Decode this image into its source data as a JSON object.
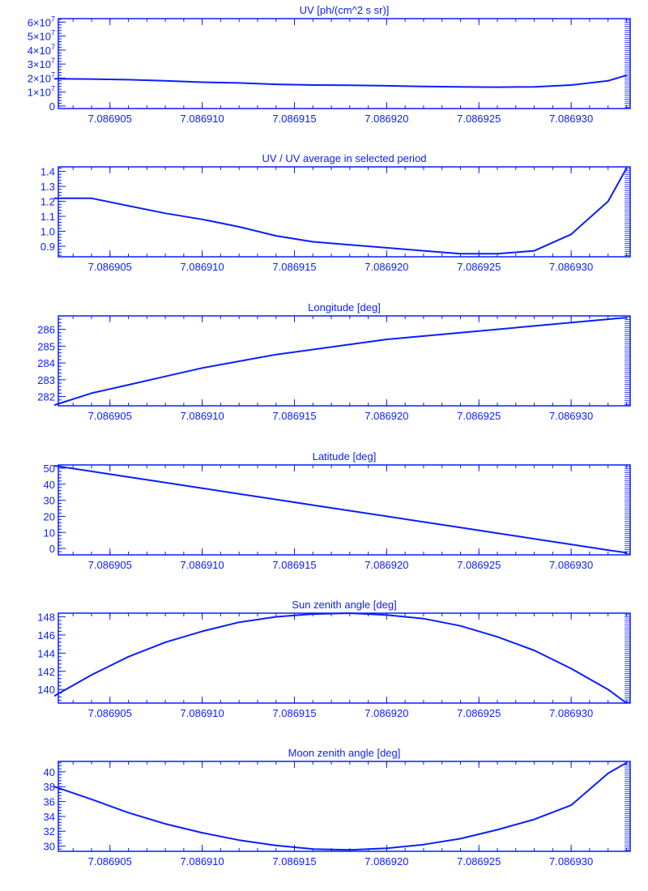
{
  "colors": {
    "ink": "#0a1eff",
    "background": "#ffffff"
  },
  "chart_data": [
    {
      "type": "line",
      "title": "UV [ph/(cm^2 s sr)]",
      "x": [
        7.086902,
        7.086904,
        7.086906,
        7.086908,
        7.08691,
        7.086912,
        7.086914,
        7.086916,
        7.086918,
        7.08692,
        7.086922,
        7.086924,
        7.086926,
        7.086928,
        7.08693,
        7.086932,
        7.086933
      ],
      "y": [
        19500000.0,
        19300000.0,
        18800000.0,
        18000000.0,
        17000000.0,
        16500000.0,
        15500000.0,
        15000000.0,
        14800000.0,
        14500000.0,
        14000000.0,
        13700000.0,
        13500000.0,
        13700000.0,
        15000000.0,
        18000000.0,
        22000000.0
      ],
      "xlim": [
        7.0869022,
        7.0869332
      ],
      "ylim": [
        -1800000.0,
        62500000.0
      ],
      "xticks": [
        7.086905,
        7.08691,
        7.086915,
        7.08692,
        7.086925,
        7.08693
      ],
      "xtick_labels": [
        "7.086905",
        "7.086910",
        "7.086915",
        "7.086920",
        "7.086925",
        "7.086930"
      ],
      "yticks": [
        0,
        10000000.0,
        20000000.0,
        30000000.0,
        40000000.0,
        50000000.0,
        60000000.0
      ],
      "ytick_labels": [
        "0",
        "1x10^7",
        "2x10^7",
        "3x10^7",
        "4x10^7",
        "5x10^7",
        "6x10^7"
      ]
    },
    {
      "type": "line",
      "title": "UV / UV average in selected period",
      "x": [
        7.086902,
        7.086904,
        7.086906,
        7.086908,
        7.08691,
        7.086912,
        7.086914,
        7.086916,
        7.086918,
        7.08692,
        7.086922,
        7.086924,
        7.086926,
        7.086928,
        7.08693,
        7.086932,
        7.086933
      ],
      "y": [
        1.22,
        1.22,
        1.17,
        1.12,
        1.08,
        1.03,
        0.97,
        0.93,
        0.91,
        0.89,
        0.87,
        0.85,
        0.85,
        0.87,
        0.98,
        1.2,
        1.42
      ],
      "xlim": [
        7.0869022,
        7.0869332
      ],
      "ylim": [
        0.83,
        1.43
      ],
      "xticks": [
        7.086905,
        7.08691,
        7.086915,
        7.08692,
        7.086925,
        7.08693
      ],
      "xtick_labels": [
        "7.086905",
        "7.086910",
        "7.086915",
        "7.086920",
        "7.086925",
        "7.086930"
      ],
      "yticks": [
        0.9,
        1.0,
        1.1,
        1.2,
        1.3,
        1.4
      ],
      "ytick_labels": [
        "0.9",
        "1.0",
        "1.1",
        "1.2",
        "1.3",
        "1.4"
      ]
    },
    {
      "type": "line",
      "title": "Longitude [deg]",
      "x": [
        7.086902,
        7.086904,
        7.086906,
        7.086908,
        7.08691,
        7.086912,
        7.086914,
        7.086916,
        7.086918,
        7.08692,
        7.086922,
        7.086924,
        7.086926,
        7.086928,
        7.08693,
        7.086932,
        7.086933
      ],
      "y": [
        281.5,
        282.2,
        282.7,
        283.2,
        283.7,
        284.1,
        284.5,
        284.8,
        285.1,
        285.4,
        285.6,
        285.8,
        286.0,
        286.2,
        286.4,
        286.6,
        286.7
      ],
      "xlim": [
        7.0869022,
        7.0869332
      ],
      "ylim": [
        281.45,
        286.8
      ],
      "xticks": [
        7.086905,
        7.08691,
        7.086915,
        7.08692,
        7.086925,
        7.08693
      ],
      "xtick_labels": [
        "7.086905",
        "7.086910",
        "7.086915",
        "7.086920",
        "7.086925",
        "7.086930"
      ],
      "yticks": [
        282,
        283,
        284,
        285,
        286
      ],
      "ytick_labels": [
        "282",
        "283",
        "284",
        "285",
        "286"
      ]
    },
    {
      "type": "line",
      "title": "Latitude [deg]",
      "x": [
        7.086902,
        7.086904,
        7.086906,
        7.086908,
        7.08691,
        7.086912,
        7.086914,
        7.086916,
        7.086918,
        7.08692,
        7.086922,
        7.086924,
        7.086926,
        7.086928,
        7.08693,
        7.086932,
        7.086933
      ],
      "y": [
        51.5,
        48,
        44.5,
        41,
        37.5,
        34,
        30.5,
        27,
        23.5,
        20,
        16.5,
        13,
        9.5,
        6,
        2.5,
        -1,
        -2.7
      ],
      "xlim": [
        7.0869022,
        7.0869332
      ],
      "ylim": [
        -4,
        52
      ],
      "xticks": [
        7.086905,
        7.08691,
        7.086915,
        7.08692,
        7.086925,
        7.08693
      ],
      "xtick_labels": [
        "7.086905",
        "7.086910",
        "7.086915",
        "7.086920",
        "7.086925",
        "7.086930"
      ],
      "yticks": [
        0,
        10,
        20,
        30,
        40,
        50
      ],
      "ytick_labels": [
        "0",
        "10",
        "20",
        "30",
        "40",
        "50"
      ]
    },
    {
      "type": "line",
      "title": "Sun zenith angle [deg]",
      "x": [
        7.086902,
        7.086904,
        7.086906,
        7.086908,
        7.08691,
        7.086912,
        7.086914,
        7.086916,
        7.086918,
        7.08692,
        7.086922,
        7.086924,
        7.086926,
        7.086928,
        7.08693,
        7.086932,
        7.086933
      ],
      "y": [
        139.3,
        141.6,
        143.6,
        145.2,
        146.4,
        147.4,
        148.0,
        148.3,
        148.4,
        148.2,
        147.8,
        147.0,
        145.8,
        144.3,
        142.3,
        140.0,
        138.5
      ],
      "xlim": [
        7.0869022,
        7.0869332
      ],
      "ylim": [
        138.5,
        148.4
      ],
      "xticks": [
        7.086905,
        7.08691,
        7.086915,
        7.08692,
        7.086925,
        7.08693
      ],
      "xtick_labels": [
        "7.086905",
        "7.086910",
        "7.086915",
        "7.086920",
        "7.086925",
        "7.086930"
      ],
      "yticks": [
        140,
        142,
        144,
        146,
        148
      ],
      "ytick_labels": [
        "140",
        "142",
        "144",
        "146",
        "148"
      ]
    },
    {
      "type": "line",
      "title": "Moon zenith angle [deg]",
      "x": [
        7.086902,
        7.086904,
        7.086906,
        7.086908,
        7.08691,
        7.086912,
        7.086914,
        7.086916,
        7.086918,
        7.08692,
        7.086922,
        7.086924,
        7.086926,
        7.086928,
        7.08693,
        7.086932,
        7.086933
      ],
      "y": [
        38,
        36.3,
        34.5,
        33,
        31.8,
        30.8,
        30.1,
        29.6,
        29.5,
        29.7,
        30.2,
        31,
        32.2,
        33.6,
        35.5,
        39.8,
        41.2
      ],
      "xlim": [
        7.0869022,
        7.0869332
      ],
      "ylim": [
        29.3,
        41.4
      ],
      "xticks": [
        7.086905,
        7.08691,
        7.086915,
        7.08692,
        7.086925,
        7.08693
      ],
      "xtick_labels": [
        "7.086905",
        "7.086910",
        "7.086915",
        "7.086920",
        "7.086925",
        "7.086930"
      ],
      "yticks": [
        30,
        32,
        34,
        36,
        38,
        40
      ],
      "ytick_labels": [
        "30",
        "32",
        "34",
        "36",
        "38",
        "40"
      ]
    }
  ]
}
